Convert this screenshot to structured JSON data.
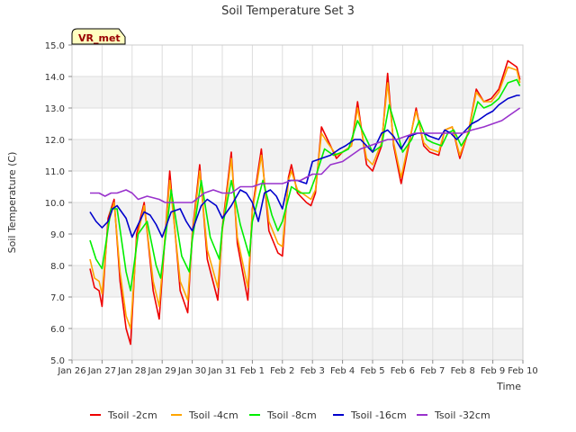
{
  "chart_data": {
    "type": "line",
    "title": "Soil Temperature Set 3",
    "xlabel": "Time",
    "ylabel": "Soil Temperature (C)",
    "badge": "VR_met",
    "ylim": [
      5.0,
      15.0
    ],
    "yticks": [
      "5.0",
      "6.0",
      "7.0",
      "8.0",
      "9.0",
      "10.0",
      "11.0",
      "12.0",
      "13.0",
      "14.0",
      "15.0"
    ],
    "xlim": [
      0,
      15
    ],
    "xticks": [
      "Jan 26",
      "Jan 27",
      "Jan 28",
      "Jan 29",
      "Jan 30",
      "Jan 31",
      "Feb 1",
      "Feb 2",
      "Feb 3",
      "Feb 4",
      "Feb 5",
      "Feb 6",
      "Feb 7",
      "Feb 8",
      "Feb 9",
      "Feb 10"
    ],
    "grid": true,
    "legend_position": "bottom",
    "colors": {
      "Tsoil -2cm": "#ee0000",
      "Tsoil -4cm": "#ffa500",
      "Tsoil -8cm": "#00ee00",
      "Tsoil -16cm": "#0000cc",
      "Tsoil -32cm": "#9932cc"
    },
    "series": [
      {
        "name": "Tsoil -2cm",
        "x": [
          0.6,
          0.75,
          0.9,
          1.0,
          1.2,
          1.4,
          1.6,
          1.8,
          1.95,
          2.15,
          2.4,
          2.7,
          2.9,
          3.25,
          3.6,
          3.85,
          4.0,
          4.25,
          4.5,
          4.85,
          5.0,
          5.3,
          5.5,
          5.85,
          6.0,
          6.3,
          6.55,
          6.85,
          7.0,
          7.2,
          7.3,
          7.5,
          7.8,
          7.95,
          8.1,
          8.3,
          8.5,
          8.8,
          9.0,
          9.3,
          9.5,
          9.8,
          10.0,
          10.3,
          10.5,
          10.7,
          10.95,
          11.2,
          11.45,
          11.7,
          11.9,
          12.2,
          12.4,
          12.65,
          12.9,
          13.2,
          13.45,
          13.7,
          13.95,
          14.2,
          14.5,
          14.8,
          14.9
        ],
        "y": [
          7.9,
          7.3,
          7.2,
          6.7,
          9.5,
          10.1,
          7.5,
          6.0,
          5.5,
          9.0,
          10.0,
          7.2,
          6.3,
          11.0,
          7.2,
          6.5,
          9.0,
          11.2,
          8.2,
          6.9,
          9.2,
          11.6,
          8.7,
          6.9,
          9.8,
          11.7,
          9.1,
          8.4,
          8.3,
          10.8,
          11.2,
          10.3,
          10.0,
          9.9,
          10.3,
          12.4,
          12.0,
          11.4,
          11.6,
          11.8,
          13.2,
          11.2,
          11.0,
          11.8,
          14.1,
          11.8,
          10.6,
          11.8,
          13.0,
          11.8,
          11.6,
          11.5,
          12.3,
          12.4,
          11.4,
          12.3,
          13.6,
          13.2,
          13.3,
          13.6,
          14.5,
          14.3,
          13.9
        ]
      },
      {
        "name": "Tsoil -4cm",
        "x": [
          0.6,
          0.75,
          0.9,
          1.0,
          1.2,
          1.4,
          1.6,
          1.8,
          1.95,
          2.15,
          2.4,
          2.7,
          2.9,
          3.25,
          3.6,
          3.85,
          4.0,
          4.25,
          4.5,
          4.85,
          5.0,
          5.3,
          5.5,
          5.85,
          6.0,
          6.3,
          6.55,
          6.85,
          7.0,
          7.2,
          7.3,
          7.5,
          7.8,
          7.95,
          8.1,
          8.3,
          8.5,
          8.8,
          9.0,
          9.3,
          9.5,
          9.8,
          10.0,
          10.3,
          10.5,
          10.7,
          10.95,
          11.2,
          11.45,
          11.7,
          11.9,
          12.2,
          12.4,
          12.65,
          12.9,
          13.2,
          13.45,
          13.7,
          13.95,
          14.2,
          14.5,
          14.8,
          14.9
        ],
        "y": [
          8.2,
          7.6,
          7.5,
          7.1,
          9.3,
          10.0,
          7.8,
          6.4,
          6.0,
          8.8,
          9.9,
          7.5,
          6.7,
          10.7,
          7.5,
          6.9,
          8.9,
          11.0,
          8.5,
          7.3,
          9.1,
          11.4,
          8.9,
          7.3,
          9.7,
          11.5,
          9.4,
          8.7,
          8.6,
          10.7,
          11.0,
          10.4,
          10.2,
          10.1,
          10.4,
          12.2,
          11.9,
          11.5,
          11.6,
          11.8,
          13.0,
          11.4,
          11.2,
          11.9,
          13.8,
          11.9,
          10.8,
          11.9,
          12.9,
          11.9,
          11.7,
          11.6,
          12.3,
          12.4,
          11.5,
          12.3,
          13.5,
          13.2,
          13.2,
          13.5,
          14.3,
          14.2,
          13.8
        ]
      },
      {
        "name": "Tsoil -8cm",
        "x": [
          0.6,
          0.8,
          1.0,
          1.3,
          1.5,
          1.8,
          1.95,
          2.2,
          2.5,
          2.8,
          2.95,
          3.3,
          3.65,
          3.9,
          4.0,
          4.3,
          4.6,
          4.9,
          5.0,
          5.3,
          5.6,
          5.9,
          6.0,
          6.35,
          6.65,
          6.85,
          7.0,
          7.3,
          7.6,
          7.9,
          8.1,
          8.4,
          8.7,
          9.0,
          9.2,
          9.5,
          9.8,
          10.0,
          10.3,
          10.55,
          10.8,
          11.0,
          11.3,
          11.55,
          11.8,
          12.0,
          12.3,
          12.5,
          12.7,
          12.95,
          13.2,
          13.5,
          13.7,
          13.95,
          14.2,
          14.5,
          14.8,
          14.9
        ],
        "y": [
          8.8,
          8.2,
          7.9,
          9.8,
          9.8,
          7.8,
          7.2,
          9.0,
          9.4,
          8.0,
          7.6,
          10.4,
          8.3,
          7.8,
          8.8,
          10.7,
          8.9,
          8.2,
          9.2,
          10.7,
          9.3,
          8.3,
          9.4,
          10.7,
          9.6,
          9.1,
          9.4,
          10.5,
          10.3,
          10.3,
          10.8,
          11.7,
          11.5,
          11.6,
          11.7,
          12.6,
          12.0,
          11.6,
          11.8,
          13.1,
          12.3,
          11.6,
          12.0,
          12.6,
          12.0,
          11.9,
          11.8,
          12.2,
          12.3,
          11.8,
          12.2,
          13.2,
          13.0,
          13.1,
          13.3,
          13.8,
          13.9,
          13.7
        ]
      },
      {
        "name": "Tsoil -16cm",
        "x": [
          0.6,
          0.8,
          1.0,
          1.2,
          1.35,
          1.5,
          1.8,
          2.0,
          2.2,
          2.4,
          2.6,
          2.8,
          3.0,
          3.3,
          3.6,
          3.8,
          4.0,
          4.3,
          4.5,
          4.8,
          5.0,
          5.3,
          5.6,
          5.8,
          6.0,
          6.2,
          6.4,
          6.6,
          6.8,
          7.0,
          7.2,
          7.5,
          7.8,
          8.0,
          8.3,
          8.6,
          8.9,
          9.1,
          9.4,
          9.6,
          9.8,
          10.0,
          10.3,
          10.5,
          10.7,
          10.95,
          11.2,
          11.5,
          11.7,
          11.9,
          12.2,
          12.4,
          12.6,
          12.8,
          13.0,
          13.3,
          13.5,
          13.8,
          14.0,
          14.2,
          14.5,
          14.8,
          14.9
        ],
        "y": [
          9.7,
          9.4,
          9.2,
          9.4,
          9.8,
          9.9,
          9.5,
          8.9,
          9.3,
          9.7,
          9.6,
          9.3,
          8.9,
          9.7,
          9.8,
          9.4,
          9.1,
          9.9,
          10.1,
          9.9,
          9.5,
          9.9,
          10.4,
          10.3,
          10.0,
          9.4,
          10.3,
          10.4,
          10.2,
          9.8,
          10.7,
          10.7,
          10.6,
          11.3,
          11.4,
          11.5,
          11.7,
          11.8,
          12.0,
          12.0,
          11.8,
          11.6,
          12.2,
          12.3,
          12.1,
          11.7,
          12.1,
          12.2,
          12.2,
          12.1,
          12.0,
          12.3,
          12.2,
          12.0,
          12.2,
          12.5,
          12.6,
          12.8,
          12.9,
          13.1,
          13.3,
          13.4,
          13.4
        ]
      },
      {
        "name": "Tsoil -32cm",
        "x": [
          0.6,
          0.9,
          1.1,
          1.3,
          1.5,
          1.8,
          2.0,
          2.2,
          2.5,
          2.9,
          3.1,
          3.4,
          3.8,
          4.0,
          4.4,
          4.7,
          5.0,
          5.3,
          5.6,
          6.0,
          6.3,
          6.6,
          7.0,
          7.3,
          7.6,
          8.0,
          8.3,
          8.6,
          9.0,
          9.3,
          9.6,
          9.9,
          10.2,
          10.5,
          10.8,
          11.1,
          11.4,
          11.8,
          12.2,
          12.6,
          13.0,
          13.3,
          13.7,
          14.0,
          14.3,
          14.6,
          14.9
        ],
        "y": [
          10.3,
          10.3,
          10.2,
          10.3,
          10.3,
          10.4,
          10.3,
          10.1,
          10.2,
          10.1,
          10.0,
          10.0,
          10.0,
          10.0,
          10.3,
          10.4,
          10.3,
          10.3,
          10.5,
          10.5,
          10.6,
          10.6,
          10.6,
          10.7,
          10.7,
          10.9,
          10.9,
          11.2,
          11.3,
          11.5,
          11.7,
          11.8,
          11.9,
          12.0,
          12.0,
          12.1,
          12.2,
          12.2,
          12.2,
          12.2,
          12.2,
          12.3,
          12.4,
          12.5,
          12.6,
          12.8,
          13.0
        ]
      }
    ]
  }
}
